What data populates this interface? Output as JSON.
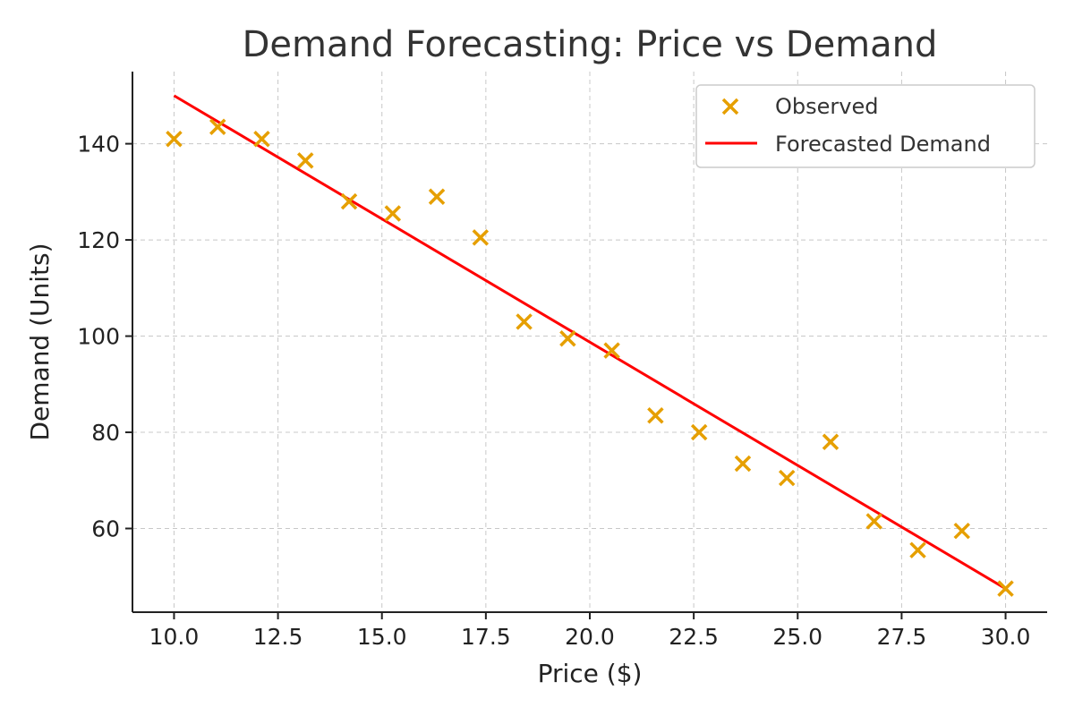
{
  "chart_data": {
    "type": "scatter",
    "title": "Demand Forecasting: Price vs Demand",
    "xlabel": "Price ($)",
    "ylabel": "Demand (Units)",
    "xlim": [
      9.0,
      31.0
    ],
    "ylim": [
      42.6,
      155.0
    ],
    "xticks": [
      "10.0",
      "12.5",
      "15.0",
      "17.5",
      "20.0",
      "22.5",
      "25.0",
      "27.5",
      "30.0"
    ],
    "xtick_values": [
      10.0,
      12.5,
      15.0,
      17.5,
      20.0,
      22.5,
      25.0,
      27.5,
      30.0
    ],
    "yticks": [
      "60",
      "80",
      "100",
      "120",
      "140"
    ],
    "ytick_values": [
      60,
      80,
      100,
      120,
      140
    ],
    "grid": true,
    "legend_position": "top-right",
    "series": [
      {
        "name": "Observed",
        "kind": "scatter",
        "marker": "x",
        "color": "#E69F00",
        "x": [
          10.0,
          11.05,
          12.11,
          13.16,
          14.21,
          15.26,
          16.32,
          17.37,
          18.42,
          19.47,
          20.53,
          21.58,
          22.63,
          23.68,
          24.74,
          25.79,
          26.84,
          27.89,
          28.95,
          30.0
        ],
        "y": [
          141.0,
          143.5,
          141.0,
          136.5,
          128.0,
          125.5,
          129.0,
          120.5,
          103.0,
          99.5,
          97.0,
          83.5,
          80.0,
          73.5,
          70.5,
          78.0,
          61.5,
          55.5,
          59.5,
          47.5
        ]
      },
      {
        "name": "Forecasted Demand",
        "kind": "line",
        "color": "#FF0000",
        "x": [
          10.0,
          30.0
        ],
        "y": [
          150.0,
          47.5
        ]
      }
    ]
  }
}
